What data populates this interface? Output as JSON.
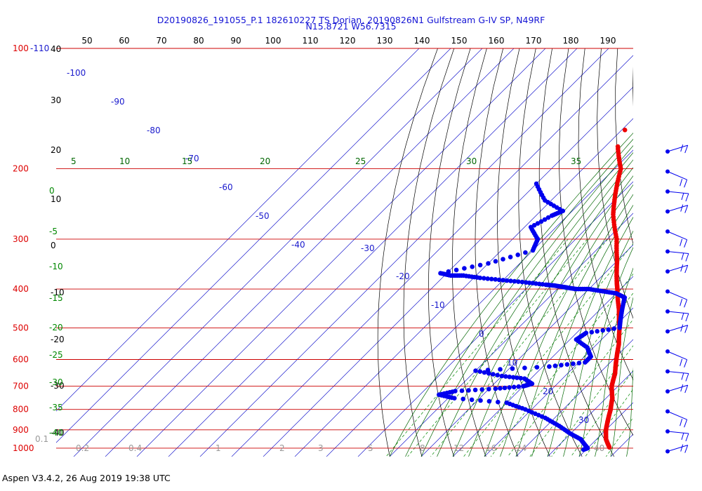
{
  "chart_data": {
    "type": "skew-t",
    "title": "D20190826_191055_P.1 182610227 TS Dorian, 20190826N1 Gulfstream G-IV SP, N49RF",
    "subtitle": "N15.8721 W56.7315",
    "footer": "Aspen V3.4.2, 26 Aug 2019  19:38 UTC",
    "pressure_levels": [
      100,
      200,
      300,
      400,
      500,
      600,
      700,
      800,
      900,
      1000
    ],
    "pressure_tick_labels": [
      "100",
      "200",
      "300",
      "400",
      "500",
      "600",
      "700",
      "800",
      "900",
      "1000"
    ],
    "pressure_top_label": "-110",
    "theta_ticks": [
      "50",
      "60",
      "70",
      "80",
      "90",
      "100",
      "110",
      "120",
      "130",
      "140",
      "150",
      "160",
      "170",
      "180",
      "190"
    ],
    "left_axis_labels": [
      "40",
      "30",
      "20",
      "10",
      "0",
      "-10",
      "-20",
      "-30",
      "-40"
    ],
    "temperature_labels": [
      "-100",
      "-90",
      "-80",
      "-70",
      "-60",
      "-50",
      "-40",
      "-30",
      "-20",
      "-10",
      "0",
      "10",
      "20",
      "30"
    ],
    "moist_adiabat_labels": [
      "5",
      "10",
      "15",
      "20",
      "25",
      "30",
      "35"
    ],
    "mixing_ratio_labels_left": [
      "0",
      "-5",
      "-10",
      "-15",
      "-20",
      "-25",
      "-30",
      "-35",
      "-40"
    ],
    "mixing_ratio_labels_bottom": [
      "0.1",
      "0.2",
      "0.4",
      "1",
      "2",
      "3",
      "5",
      "8",
      "12",
      "16",
      "24",
      "40"
    ],
    "temperature_profile": [
      {
        "p": 176,
        "t": -66
      },
      {
        "p": 200,
        "t": -58
      },
      {
        "p": 230,
        "t": -52
      },
      {
        "p": 260,
        "t": -46
      },
      {
        "p": 300,
        "t": -37
      },
      {
        "p": 340,
        "t": -30
      },
      {
        "p": 380,
        "t": -24
      },
      {
        "p": 400,
        "t": -21
      },
      {
        "p": 450,
        "t": -14
      },
      {
        "p": 500,
        "t": -8
      },
      {
        "p": 550,
        "t": -3
      },
      {
        "p": 600,
        "t": 1
      },
      {
        "p": 650,
        "t": 5
      },
      {
        "p": 700,
        "t": 8
      },
      {
        "p": 750,
        "t": 12
      },
      {
        "p": 800,
        "t": 15
      },
      {
        "p": 850,
        "t": 17.5
      },
      {
        "p": 900,
        "t": 20
      },
      {
        "p": 950,
        "t": 23
      },
      {
        "p": 1000,
        "t": 27
      }
    ],
    "temperature_outlier": {
      "p": 160,
      "t": -69
    },
    "dewpoint_profile": [
      {
        "p": 218,
        "td": -80
      },
      {
        "p": 240,
        "td": -72
      },
      {
        "p": 255,
        "td": -63
      },
      {
        "p": 262,
        "td": -65
      },
      {
        "p": 280,
        "td": -68
      },
      {
        "p": 300,
        "td": -62
      },
      {
        "p": 320,
        "td": -60
      },
      {
        "p": 345,
        "td": -70
      },
      {
        "p": 365,
        "td": -82
      },
      {
        "p": 370,
        "td": -78
      },
      {
        "p": 370,
        "td": -74
      },
      {
        "p": 375,
        "td": -68
      },
      {
        "p": 380,
        "td": -60
      },
      {
        "p": 385,
        "td": -52
      },
      {
        "p": 390,
        "td": -45
      },
      {
        "p": 392,
        "td": -42
      },
      {
        "p": 395,
        "td": -39
      },
      {
        "p": 397,
        "td": -37
      },
      {
        "p": 400,
        "td": -34
      },
      {
        "p": 400,
        "td": -30
      },
      {
        "p": 405,
        "td": -25
      },
      {
        "p": 410,
        "td": -20
      },
      {
        "p": 420,
        "td": -16
      },
      {
        "p": 450,
        "td": -13
      },
      {
        "p": 480,
        "td": -10
      },
      {
        "p": 500,
        "td": -8
      },
      {
        "p": 515,
        "td": -17
      },
      {
        "p": 535,
        "td": -18
      },
      {
        "p": 560,
        "td": -12
      },
      {
        "p": 590,
        "td": -8
      },
      {
        "p": 610,
        "td": -8
      },
      {
        "p": 625,
        "td": -18
      },
      {
        "p": 640,
        "td": -40
      },
      {
        "p": 660,
        "td": -30
      },
      {
        "p": 670,
        "td": -22
      },
      {
        "p": 690,
        "td": -18
      },
      {
        "p": 700,
        "td": -20
      },
      {
        "p": 710,
        "td": -28
      },
      {
        "p": 720,
        "td": -40
      },
      {
        "p": 735,
        "td": -44
      },
      {
        "p": 750,
        "td": -38
      },
      {
        "p": 770,
        "td": -20
      },
      {
        "p": 800,
        "td": -12
      },
      {
        "p": 840,
        "td": -3
      },
      {
        "p": 880,
        "td": 4
      },
      {
        "p": 920,
        "td": 10
      },
      {
        "p": 950,
        "td": 15
      },
      {
        "p": 980,
        "td": 18
      },
      {
        "p": 1000,
        "td": 20
      },
      {
        "p": 1010,
        "td": 19
      }
    ],
    "wind_barbs": {
      "count": 16,
      "color": "#1a1acd"
    },
    "colors": {
      "temperature": "#ee0000",
      "dewpoint": "#0000ee",
      "isobar": "#cc0000",
      "isotherm": "#1a1acd",
      "dry_adiabat": "#000000",
      "moist_adiabat": "#006600",
      "mixing_ratio": "#008800",
      "title": "#1515d5"
    }
  }
}
